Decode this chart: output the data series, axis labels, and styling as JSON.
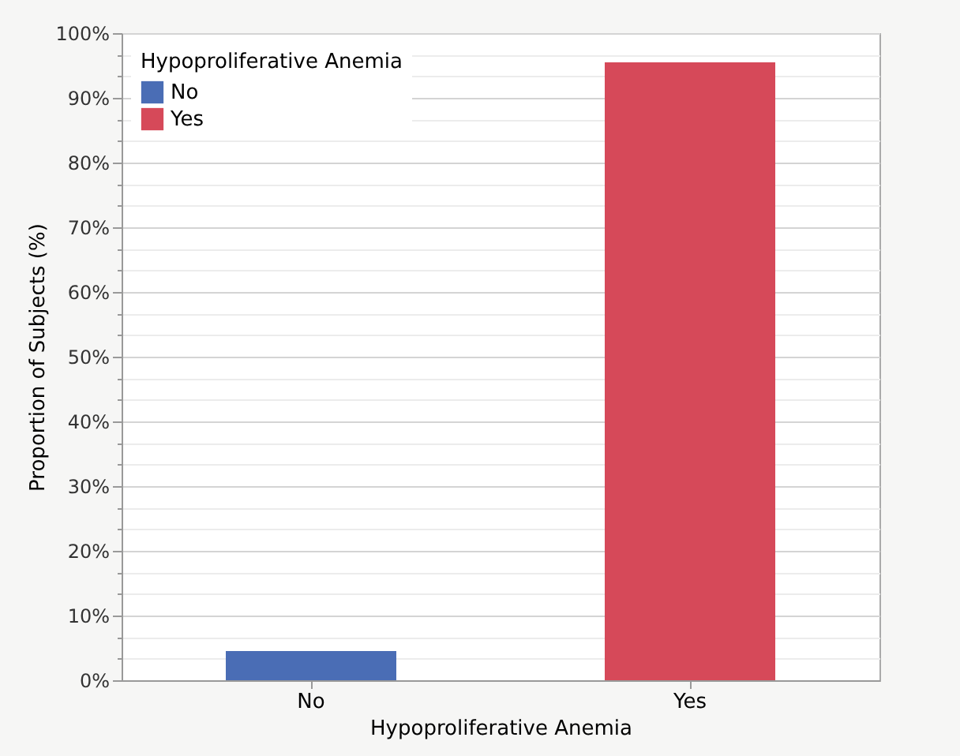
{
  "chart_data": {
    "type": "bar",
    "xlabel": "Hypoproliferative Anemia",
    "ylabel": "Proportion of Subjects (%)",
    "legend_title": "Hypoproliferative Anemia",
    "categories": [
      "No",
      "Yes"
    ],
    "series": [
      {
        "name": "No",
        "color": "#4a6db5",
        "values": [
          4.5,
          null
        ]
      },
      {
        "name": "Yes",
        "color": "#d64959",
        "values": [
          null,
          95.5
        ]
      }
    ],
    "ylim": [
      0,
      100
    ],
    "yticks": [
      {
        "value": 0,
        "label": "0%"
      },
      {
        "value": 3.33,
        "label": null
      },
      {
        "value": 6.67,
        "label": null
      },
      {
        "value": 10,
        "label": "10%"
      },
      {
        "value": 13.33,
        "label": null
      },
      {
        "value": 16.67,
        "label": null
      },
      {
        "value": 20,
        "label": "20%"
      },
      {
        "value": 23.33,
        "label": null
      },
      {
        "value": 26.67,
        "label": null
      },
      {
        "value": 30,
        "label": "30%"
      },
      {
        "value": 33.33,
        "label": null
      },
      {
        "value": 36.67,
        "label": null
      },
      {
        "value": 40,
        "label": "40%"
      },
      {
        "value": 43.33,
        "label": null
      },
      {
        "value": 46.67,
        "label": null
      },
      {
        "value": 50,
        "label": "50%"
      },
      {
        "value": 53.33,
        "label": null
      },
      {
        "value": 56.67,
        "label": null
      },
      {
        "value": 60,
        "label": "60%"
      },
      {
        "value": 63.33,
        "label": null
      },
      {
        "value": 66.67,
        "label": null
      },
      {
        "value": 70,
        "label": "70%"
      },
      {
        "value": 73.33,
        "label": null
      },
      {
        "value": 76.67,
        "label": null
      },
      {
        "value": 80,
        "label": "80%"
      },
      {
        "value": 83.33,
        "label": null
      },
      {
        "value": 86.67,
        "label": null
      },
      {
        "value": 90,
        "label": "90%"
      },
      {
        "value": 93.33,
        "label": null
      },
      {
        "value": 96.67,
        "label": null
      },
      {
        "value": 100,
        "label": "100%"
      }
    ],
    "grid": "y",
    "legend": "top left"
  }
}
